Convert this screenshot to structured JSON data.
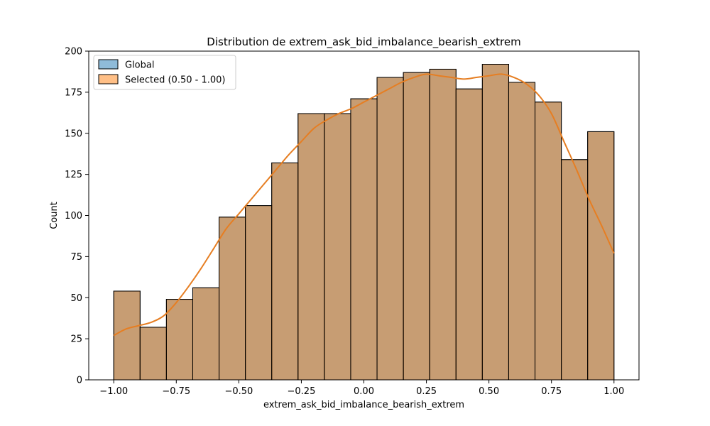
{
  "chart_data": {
    "type": "bar",
    "title": "Distribution de extrem_ask_bid_imbalance_bearish_extrem",
    "xlabel": "extrem_ask_bid_imbalance_bearish_extrem",
    "ylabel": "Count",
    "xlim": [
      -1.1,
      1.1
    ],
    "ylim": [
      0,
      200
    ],
    "x_ticks": [
      -1.0,
      -0.75,
      -0.5,
      -0.25,
      0.0,
      0.25,
      0.5,
      0.75,
      1.0
    ],
    "x_tick_labels": [
      "−1.00",
      "−0.75",
      "−0.50",
      "−0.25",
      "0.00",
      "0.25",
      "0.50",
      "0.75",
      "1.00"
    ],
    "y_ticks": [
      0,
      25,
      50,
      75,
      100,
      125,
      150,
      175,
      200
    ],
    "y_tick_labels": [
      "0",
      "25",
      "50",
      "75",
      "100",
      "125",
      "150",
      "175",
      "200"
    ],
    "grid": false,
    "legend_position": "top-left",
    "bins": {
      "start": -1.0,
      "end": 1.0,
      "count": 19,
      "values": [
        54,
        32,
        49,
        56,
        99,
        106,
        132,
        162,
        162,
        171,
        184,
        187,
        189,
        177,
        192,
        181,
        169,
        134,
        151
      ]
    },
    "series": [
      {
        "name": "Global",
        "color": "#1f77b4",
        "values": [
          54,
          32,
          49,
          56,
          99,
          106,
          132,
          162,
          162,
          171,
          184,
          187,
          189,
          177,
          192,
          181,
          169,
          134,
          151
        ]
      },
      {
        "name": "Selected (0.50 - 1.00)",
        "color": "#ff7f0e",
        "values": [
          54,
          32,
          49,
          56,
          99,
          106,
          132,
          162,
          162,
          171,
          184,
          187,
          189,
          177,
          192,
          181,
          169,
          134,
          151
        ]
      }
    ],
    "kde": {
      "color": "#e67e22",
      "x": [
        -1.0,
        -0.95,
        -0.9,
        -0.85,
        -0.8,
        -0.75,
        -0.7,
        -0.65,
        -0.6,
        -0.55,
        -0.5,
        -0.45,
        -0.4,
        -0.35,
        -0.3,
        -0.25,
        -0.2,
        -0.15,
        -0.1,
        -0.05,
        0.0,
        0.05,
        0.1,
        0.15,
        0.2,
        0.25,
        0.3,
        0.35,
        0.4,
        0.45,
        0.5,
        0.55,
        0.6,
        0.65,
        0.7,
        0.75,
        0.8,
        0.85,
        0.9,
        0.95,
        1.0
      ],
      "y": [
        27,
        31,
        33,
        35,
        39,
        47,
        57,
        68,
        80,
        92,
        101,
        110,
        119,
        128,
        137,
        145,
        153,
        158,
        162,
        165,
        169,
        173,
        177,
        181,
        184,
        186,
        185,
        184,
        183,
        184,
        185,
        186,
        184,
        180,
        173,
        162,
        145,
        128,
        110,
        94,
        77
      ]
    }
  }
}
